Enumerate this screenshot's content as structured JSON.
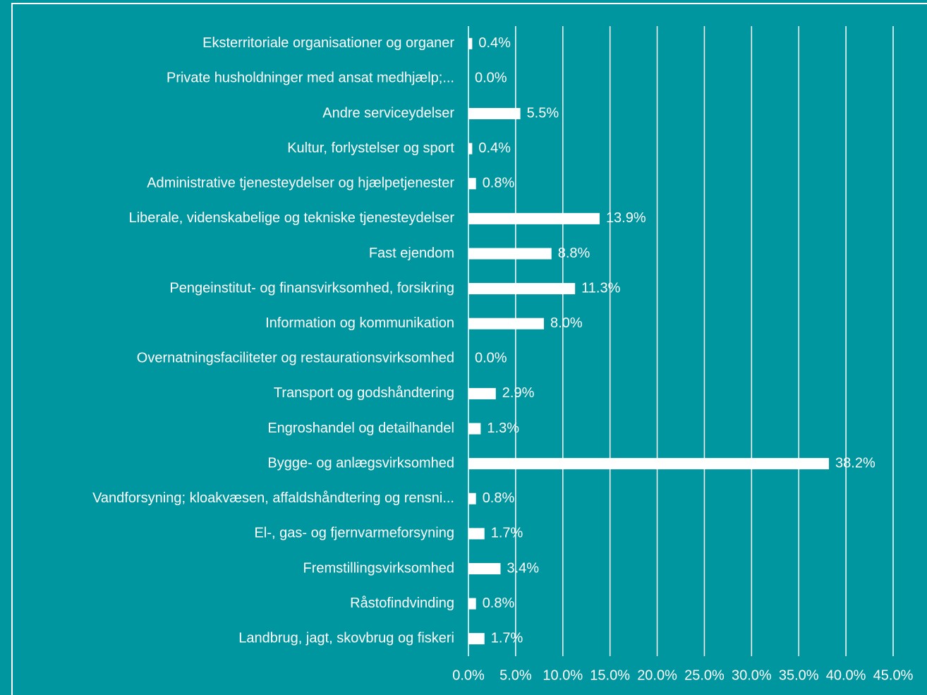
{
  "chart_data": {
    "type": "barh",
    "categories": [
      "Eksterritoriale organisationer og organer",
      "Private husholdninger med ansat medhjælp;...",
      "Andre serviceydelser",
      "Kultur, forlystelser og sport",
      "Administrative tjenesteydelser og hjælpetjenester",
      "Liberale, videnskabelige og tekniske tjenesteydelser",
      "Fast ejendom",
      "Pengeinstitut- og finansvirksomhed, forsikring",
      "Information og kommunikation",
      "Overnatningsfaciliteter og restaurationsvirksomhed",
      "Transport og godshåndtering",
      "Engroshandel og detailhandel",
      "Bygge- og anlægsvirksomhed",
      "Vandforsyning; kloakvæsen, affaldshåndtering og rensni...",
      "El-, gas- og fjernvarmeforsyning",
      "Fremstillingsvirksomhed",
      "Råstofindvinding",
      "Landbrug, jagt, skovbrug og fiskeri"
    ],
    "values": [
      0.4,
      0.0,
      5.5,
      0.4,
      0.8,
      13.9,
      8.8,
      11.3,
      8.0,
      0.0,
      2.9,
      1.3,
      38.2,
      0.8,
      1.7,
      3.4,
      0.8,
      1.7
    ],
    "value_labels": [
      "0.4%",
      "0.0%",
      "5.5%",
      "0.4%",
      "0.8%",
      "13.9%",
      "8.8%",
      "11.3%",
      "8.0%",
      "0.0%",
      "2.9%",
      "1.3%",
      "38.2%",
      "0.8%",
      "1.7%",
      "3.4%",
      "0.8%",
      "1.7%"
    ],
    "color": "#ffffff",
    "xlim": [
      0,
      45
    ],
    "xticks": [
      {
        "value": 0,
        "label": "0.0%"
      },
      {
        "value": 5,
        "label": "5.0%"
      },
      {
        "value": 10,
        "label": "10.0%"
      },
      {
        "value": 15,
        "label": "15.0%"
      },
      {
        "value": 20,
        "label": "20.0%"
      },
      {
        "value": 25,
        "label": "25.0%"
      },
      {
        "value": 30,
        "label": "30.0%"
      },
      {
        "value": 35,
        "label": "35.0%"
      },
      {
        "value": 40,
        "label": "40.0%"
      },
      {
        "value": 45,
        "label": "45.0%"
      }
    ],
    "grid": true
  }
}
